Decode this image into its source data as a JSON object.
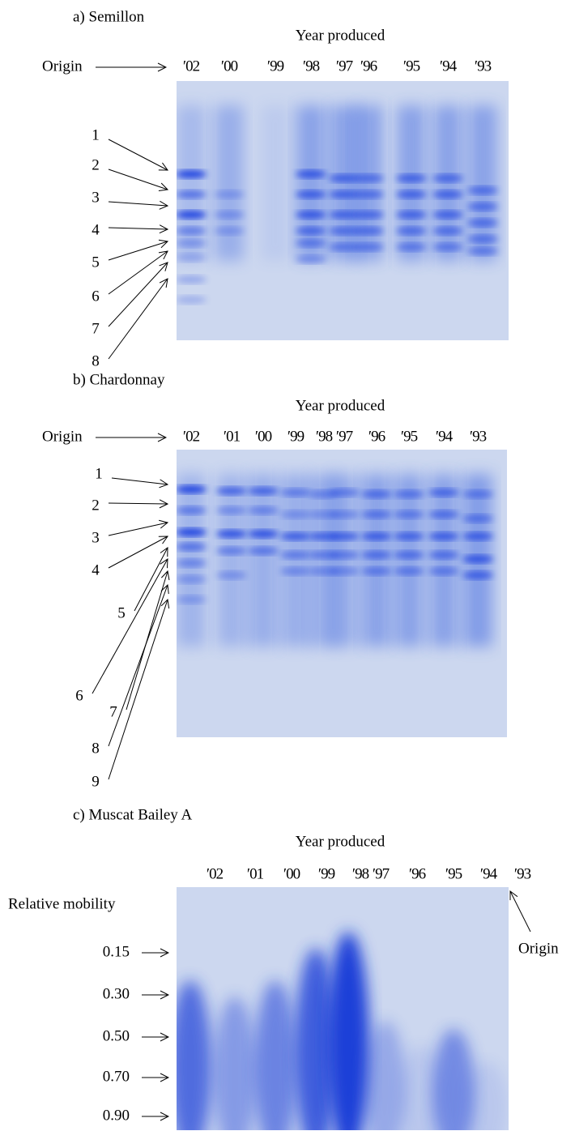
{
  "panels": [
    {
      "title": "a) Semillon",
      "axis_title": "Year produced",
      "lanes": [
        "′02",
        "′00",
        "′99",
        "′98",
        "′97",
        "′96",
        "′95",
        "′94",
        "′93"
      ],
      "origin": "Origin",
      "bands": [
        "1",
        "2",
        "3",
        "4",
        "5",
        "6",
        "7",
        "8"
      ]
    },
    {
      "title": "b) Chardonnay",
      "axis_title": "Year produced",
      "lanes": [
        "′02",
        "′01",
        "′00",
        "′99",
        "′98",
        "′97",
        "′96",
        "′95",
        "′94",
        "′93"
      ],
      "origin": "Origin",
      "bands": [
        "1",
        "2",
        "3",
        "4",
        "5",
        "6",
        "7",
        "8",
        "9"
      ]
    },
    {
      "title": "c) Muscat Bailey A",
      "axis_title": "Year produced",
      "lanes": [
        "′02",
        "′01",
        "′00",
        "′99",
        "′98",
        "′97",
        "′96",
        "′95",
        "′94",
        "′93"
      ],
      "origin": "Origin",
      "mobility_title": "Relative mobility",
      "mobility": [
        "0.15",
        "0.30",
        "0.50",
        "0.70",
        "0.90"
      ]
    }
  ]
}
